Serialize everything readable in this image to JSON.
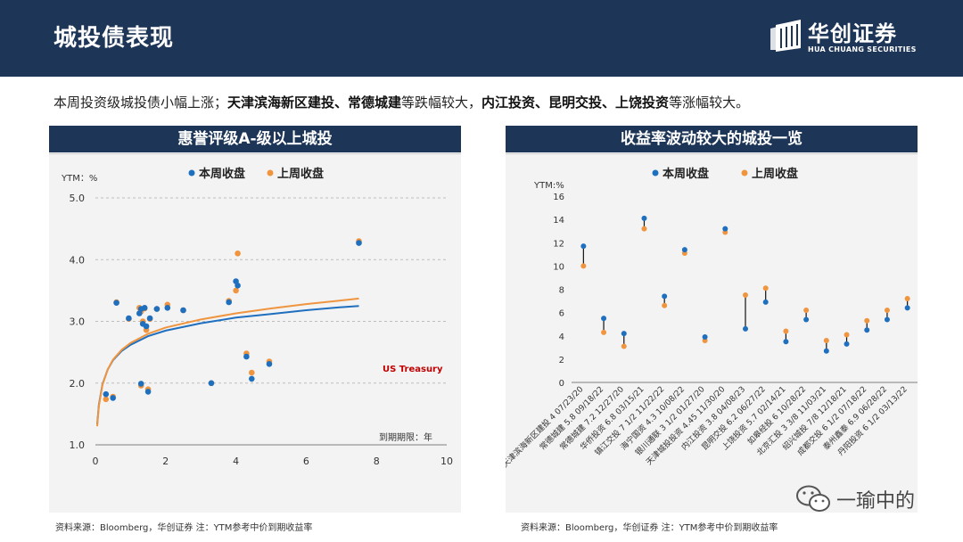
{
  "header": {
    "title": "城投债表现",
    "logo_cn": "华创证券",
    "logo_en": "HUA CHUANG SECURITIES"
  },
  "summary": {
    "part1": "本周投资级城投债小幅上涨；",
    "bold1": "天津滨海新区建投、常德城建",
    "part2": "等跌幅较大，",
    "bold2": "内江投资、昆明交投、上饶投资",
    "part3": "等涨幅较大。"
  },
  "colors": {
    "navy": "#1d3557",
    "this_week": "#1f6fbf",
    "last_week": "#f0953f",
    "us_treasury_label": "#c00000"
  },
  "left_panel": {
    "title": "惠誉评级A-级以上城投",
    "source": "资料来源：Bloomberg，华创证券        注：YTM参考中价到期收益率"
  },
  "right_panel": {
    "title": "收益率波动较大的城投一览",
    "source": "资料来源：Bloomberg，华创证券        注：YTM参考中价到期收益率"
  },
  "watermark": {
    "text": "一瑜中的"
  },
  "chart_data": [
    {
      "type": "scatter",
      "ylabel": "YTM：%",
      "xlabel": "到期期限：年",
      "xlim": [
        0,
        10
      ],
      "ylim": [
        1.0,
        5.0
      ],
      "xticks": [
        0,
        2,
        4,
        6,
        8,
        10
      ],
      "yticks": [
        1.0,
        2.0,
        3.0,
        4.0,
        5.0
      ],
      "ytick_labels": [
        "1.0",
        "2.0",
        "3.0",
        "4.0",
        "5.0"
      ],
      "grid": true,
      "legend_position": "top",
      "annotation": "US Treasury",
      "series": [
        {
          "name": "本周收盘",
          "points": [
            [
              0.3,
              1.82
            ],
            [
              0.5,
              1.76
            ],
            [
              0.6,
              3.3
            ],
            [
              0.95,
              3.05
            ],
            [
              1.25,
              3.13
            ],
            [
              1.3,
              3.2
            ],
            [
              1.3,
              1.99
            ],
            [
              1.35,
              2.96
            ],
            [
              1.4,
              3.22
            ],
            [
              1.45,
              2.92
            ],
            [
              1.5,
              1.86
            ],
            [
              1.55,
              3.05
            ],
            [
              1.75,
              3.2
            ],
            [
              2.05,
              3.22
            ],
            [
              2.5,
              3.18
            ],
            [
              3.3,
              2.0
            ],
            [
              3.8,
              3.31
            ],
            [
              4.0,
              3.65
            ],
            [
              4.05,
              3.58
            ],
            [
              4.3,
              2.43
            ],
            [
              4.45,
              2.07
            ],
            [
              4.95,
              2.31
            ],
            [
              7.5,
              4.27
            ]
          ]
        },
        {
          "name": "上周收盘",
          "points": [
            [
              0.3,
              1.74
            ],
            [
              0.5,
              1.78
            ],
            [
              0.6,
              3.31
            ],
            [
              0.95,
              3.04
            ],
            [
              1.25,
              3.22
            ],
            [
              1.3,
              3.16
            ],
            [
              1.3,
              1.96
            ],
            [
              1.35,
              3.0
            ],
            [
              1.4,
              3.21
            ],
            [
              1.45,
              2.86
            ],
            [
              1.5,
              1.9
            ],
            [
              1.55,
              3.04
            ],
            [
              1.75,
              3.2
            ],
            [
              2.05,
              3.27
            ],
            [
              2.5,
              3.18
            ],
            [
              3.3,
              2.0
            ],
            [
              3.8,
              3.33
            ],
            [
              4.0,
              3.5
            ],
            [
              4.05,
              4.1
            ],
            [
              4.3,
              2.48
            ],
            [
              4.45,
              2.17
            ],
            [
              4.95,
              2.35
            ],
            [
              7.5,
              4.3
            ]
          ]
        }
      ],
      "curves": [
        {
          "series": "本周收盘",
          "x": [
            0.05,
            0.1,
            0.2,
            0.35,
            0.5,
            0.75,
            1,
            1.5,
            2,
            3,
            4,
            5,
            6,
            7,
            7.5
          ],
          "y": [
            1.33,
            1.65,
            1.98,
            2.22,
            2.37,
            2.52,
            2.62,
            2.76,
            2.85,
            2.97,
            3.06,
            3.12,
            3.18,
            3.23,
            3.25
          ]
        },
        {
          "series": "上周收盘",
          "x": [
            0.05,
            0.1,
            0.2,
            0.35,
            0.5,
            0.75,
            1,
            1.5,
            2,
            3,
            4,
            5,
            6,
            7,
            7.5
          ],
          "y": [
            1.3,
            1.63,
            1.97,
            2.22,
            2.38,
            2.54,
            2.65,
            2.8,
            2.9,
            3.03,
            3.13,
            3.21,
            3.28,
            3.34,
            3.37
          ]
        }
      ]
    },
    {
      "type": "scatter",
      "ylabel": "YTM:%",
      "ylim": [
        0,
        16
      ],
      "yticks": [
        0,
        2,
        4,
        6,
        8,
        10,
        12,
        14,
        16
      ],
      "ytick_labels": [
        "0",
        "2",
        "4",
        "6",
        "8",
        "10",
        "12",
        "14",
        "16"
      ],
      "legend_position": "top",
      "categories": [
        "天津滨海新区建投 4 07/23/20",
        "常德城建 5.8 09/18/22",
        "常德城建 7.2 12/27/20",
        "华侨投资 6.8 03/15/21",
        "镇江交投 7 1/2 11/22/22",
        "海宁国资 4.3 10/08/22",
        "银川通联 3 1/2 01/27/20",
        "天津城投投资 4.45 11/30/20",
        "内江投资 3.8 04/08/23",
        "昆明交投 6.2 06/27/22",
        "上饶投资 5.7 02/14/21",
        "如皋经投 6 10/28/22",
        "北京汇投 3 3/8 11/03/21",
        "绍兴城投 7/8 12/18/21",
        "成都交投 6 1/2 07/18/22",
        "泰州鑫泰 6.9 06/28/22",
        "丹阳投资 6 1/2 03/13/22"
      ],
      "series": [
        {
          "name": "本周收盘",
          "values": [
            11.7,
            5.5,
            4.2,
            14.1,
            7.4,
            11.4,
            3.9,
            13.2,
            4.6,
            6.9,
            3.5,
            5.4,
            2.7,
            3.3,
            4.5,
            5.4,
            6.4
          ]
        },
        {
          "name": "上周收盘",
          "values": [
            10.0,
            4.3,
            3.1,
            13.2,
            6.6,
            11.1,
            3.6,
            12.9,
            7.5,
            8.1,
            4.4,
            6.2,
            3.6,
            4.1,
            5.3,
            6.2,
            7.2
          ]
        }
      ]
    }
  ]
}
